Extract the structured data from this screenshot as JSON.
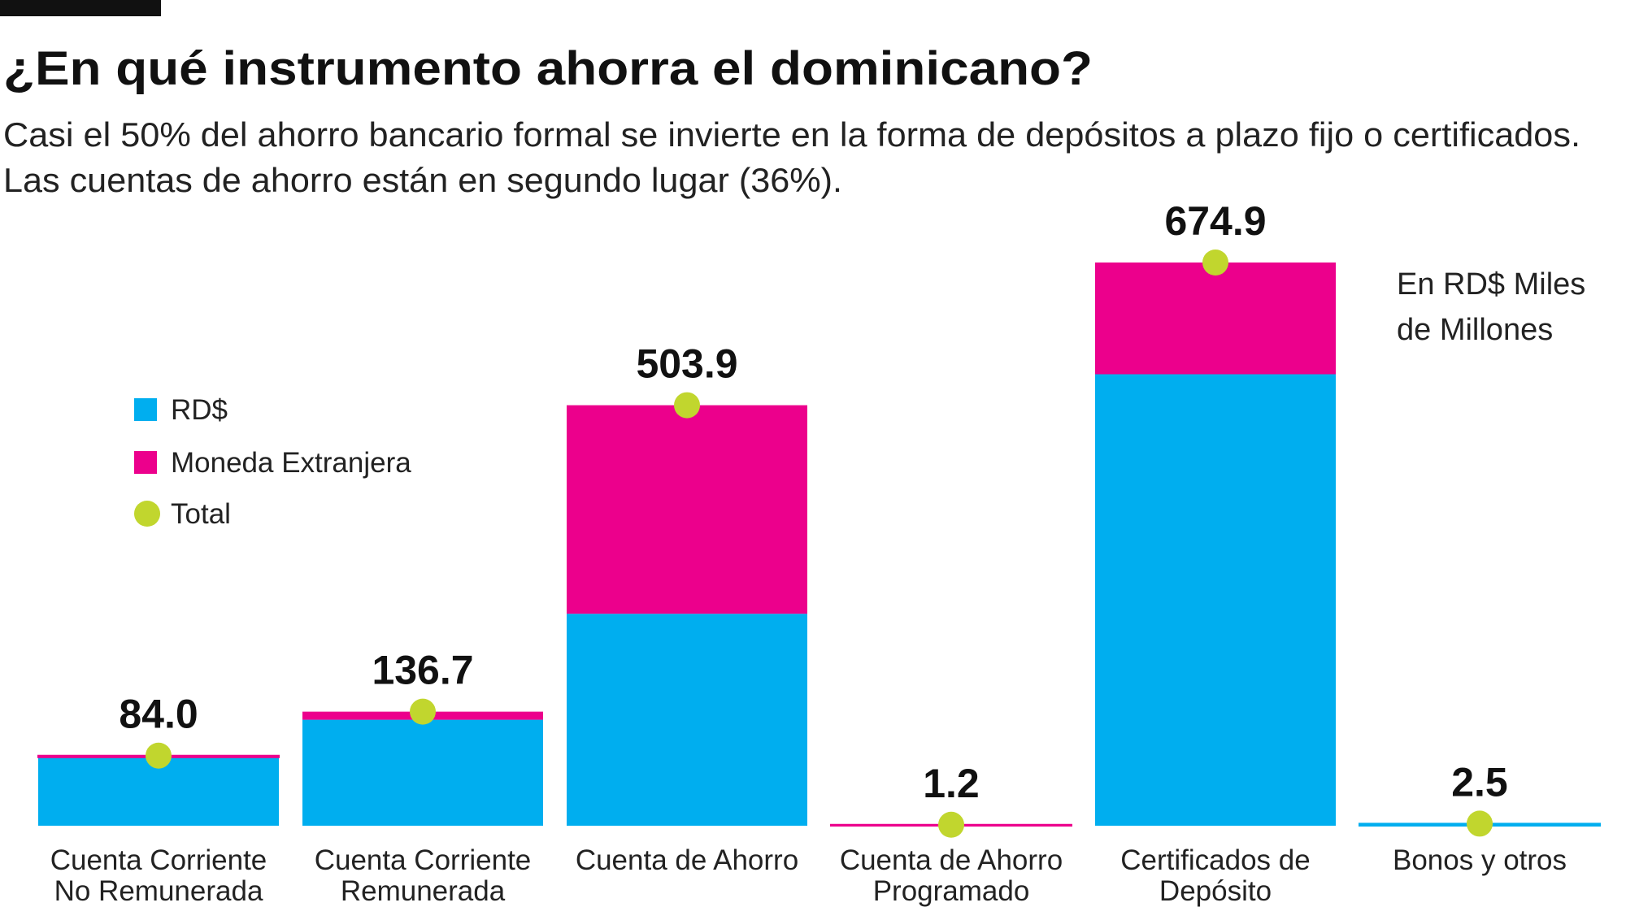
{
  "chart_data": {
    "type": "bar",
    "stacked": true,
    "title": "¿En qué instrumento ahorra el dominicano?",
    "subtitle": [
      "Casi el 50% del ahorro bancario formal se invierte en la forma de depósitos a plazo fijo o certificados.",
      "Las cuentas de ahorro están en segundo lugar (36%)."
    ],
    "unit_note": [
      "En RD$ Miles",
      "de Millones"
    ],
    "categories": [
      [
        "Cuenta Corriente",
        "No Remunerada"
      ],
      [
        "Cuenta Corriente",
        "Remunerada"
      ],
      [
        "Cuenta de Ahorro"
      ],
      [
        "Cuenta de Ahorro",
        "Programado"
      ],
      [
        "Certificados de",
        "Depósito"
      ],
      [
        "Bonos y otros"
      ]
    ],
    "series": [
      {
        "name": "RD$",
        "color": "#00aeef",
        "values": [
          82,
          127,
          254,
          0,
          541,
          2.5
        ]
      },
      {
        "name": "Moneda Extranjera",
        "color": "#ec008c",
        "values": [
          2,
          9.7,
          249.9,
          1.2,
          133.9,
          0
        ]
      },
      {
        "name": "Total",
        "color": "#c1d62e",
        "values": [
          84.0,
          136.7,
          503.9,
          1.2,
          674.9,
          2.5
        ],
        "value_labels": [
          "84.0",
          "136.7",
          "503.9",
          "1.2",
          "674.9",
          "2.5"
        ]
      }
    ]
  }
}
